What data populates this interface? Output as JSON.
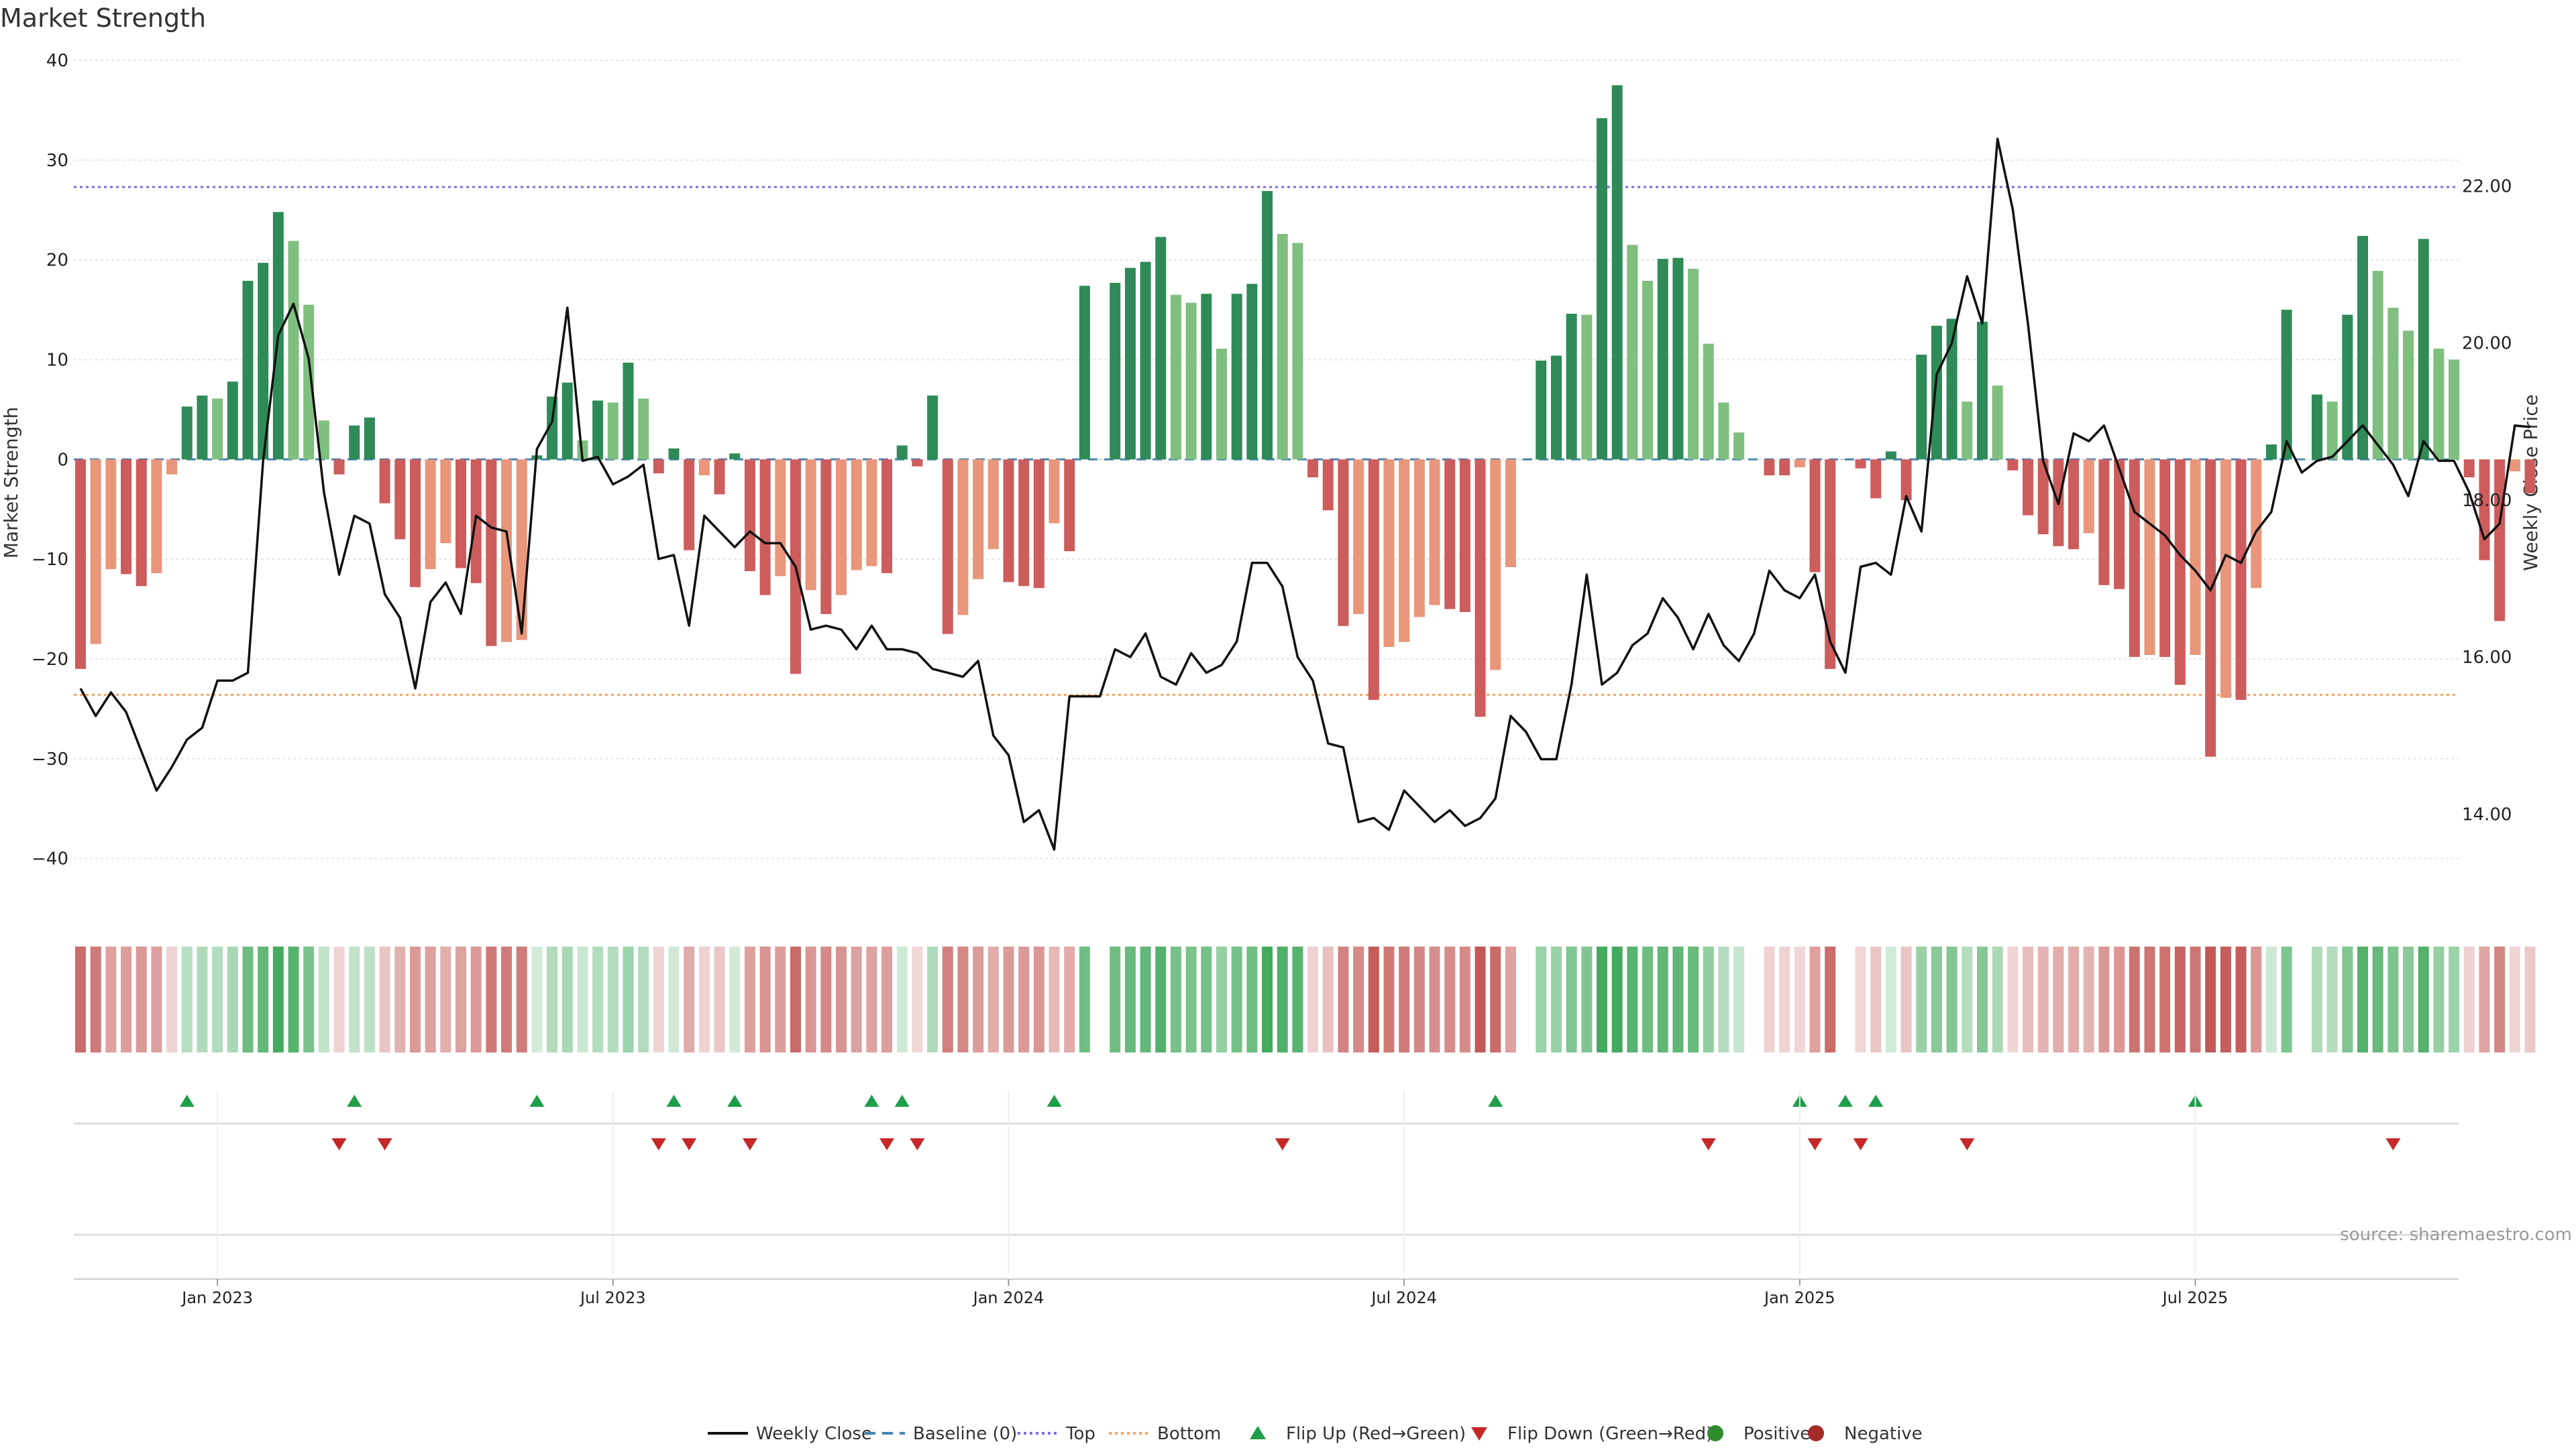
{
  "chart_data": {
    "type": "bar",
    "title": "Market Strength",
    "source": "source: sharemaestro.com",
    "ylabel_left": "Market Strength",
    "ylabel_right": "Weekly Close Price",
    "ylim_left": [
      -45,
      40
    ],
    "ylim_right": [
      12.8,
      23.6
    ],
    "left_ticks": [
      40,
      30,
      20,
      10,
      0,
      -10,
      -20,
      -30,
      -40
    ],
    "right_ticks": [
      22.0,
      20.0,
      18.0,
      16.0,
      14.0
    ],
    "left_tick_labels": [
      "40",
      "30",
      "20",
      "10",
      "0",
      "−10",
      "−20",
      "−30",
      "−40"
    ],
    "right_tick_labels": [
      "22.00",
      "20.00",
      "18.00",
      "16.00",
      "14.00"
    ],
    "x_ticks": [
      {
        "label": "Jan 2023",
        "index": 9
      },
      {
        "label": "Jul 2023",
        "index": 35
      },
      {
        "label": "Jan 2024",
        "index": 61
      },
      {
        "label": "Jul 2024",
        "index": 87
      },
      {
        "label": "Jan 2025",
        "index": 113
      },
      {
        "label": "Jul 2025",
        "index": 139
      }
    ],
    "top_level": 27.3,
    "bottom_level": -23.6,
    "baseline": 0,
    "strength": [
      -21,
      -18.5,
      -11,
      -11.5,
      -12.7,
      -11.4,
      -1.5,
      5.3,
      6.4,
      6.1,
      7.8,
      17.9,
      19.7,
      24.8,
      21.9,
      15.5,
      3.9,
      -1.5,
      3.4,
      4.2,
      -4.4,
      -8,
      -12.8,
      -11,
      -8.4,
      -10.9,
      -12.4,
      -18.7,
      -18.3,
      -18.1,
      0.4,
      6.3,
      7.7,
      1.9,
      5.9,
      5.7,
      9.7,
      6.1,
      -1.4,
      1.1,
      -9.1,
      -1.6,
      -3.5,
      0.6,
      -11.2,
      -13.6,
      -11.7,
      -21.5,
      -13.1,
      -15.5,
      -13.6,
      -11.1,
      -10.7,
      -11.4,
      1.4,
      -0.7,
      6.4,
      -17.5,
      -15.6,
      -12,
      -9,
      -12.3,
      -12.7,
      -12.9,
      -6.4,
      -9.2,
      17.4,
      0,
      17.7,
      19.2,
      19.8,
      22.3,
      16.5,
      15.7,
      16.6,
      11.1,
      16.6,
      17.6,
      26.9,
      22.6,
      21.7,
      -1.8,
      -5.1,
      -16.7,
      -15.5,
      -24.1,
      -18.8,
      -18.3,
      -15.8,
      -14.6,
      -15,
      -15.3,
      -25.8,
      -21.1,
      -10.8,
      0,
      9.9,
      10.4,
      14.6,
      14.5,
      34.2,
      37.5,
      21.5,
      17.9,
      20.1,
      20.2,
      19.1,
      11.6,
      5.7,
      2.7,
      0,
      -1.6,
      -1.6,
      -0.8,
      -11.3,
      -21,
      0,
      -0.9,
      -3.9,
      0.8,
      -4.1,
      10.5,
      13.4,
      14.1,
      5.8,
      13.8,
      7.4,
      -1.1,
      -5.6,
      -7.5,
      -8.7,
      -9,
      -7.4,
      -12.6,
      -13,
      -19.8,
      -19.6,
      -19.8,
      -22.6,
      -19.6,
      -29.8,
      -23.9,
      -24.1,
      -12.9,
      1.5,
      15,
      0,
      6.5,
      5.8,
      14.5,
      22.4,
      18.9,
      15.2,
      12.9,
      22.1,
      11.1,
      10,
      -1.8,
      -10.1,
      -16.2,
      -1.2,
      -3.4
    ],
    "weekly_close": [
      15.6,
      15.25,
      15.55,
      15.3,
      14.8,
      14.3,
      14.6,
      14.95,
      15.1,
      15.7,
      15.7,
      15.8,
      18.5,
      20.1,
      20.5,
      19.8,
      18.1,
      17.05,
      17.8,
      17.7,
      16.8,
      16.5,
      15.6,
      16.7,
      16.95,
      16.55,
      17.8,
      17.65,
      17.6,
      16.3,
      18.65,
      19.0,
      20.45,
      18.5,
      18.55,
      18.2,
      18.3,
      18.45,
      17.25,
      17.3,
      16.4,
      17.8,
      17.6,
      17.4,
      17.6,
      17.45,
      17.45,
      17.15,
      16.35,
      16.4,
      16.35,
      16.1,
      16.4,
      16.1,
      16.1,
      16.05,
      15.85,
      15.8,
      15.75,
      15.95,
      15.0,
      14.75,
      13.9,
      14.05,
      13.55,
      15.5,
      15.5,
      15.5,
      16.1,
      16.0,
      16.3,
      15.75,
      15.65,
      16.05,
      15.8,
      15.9,
      16.2,
      17.2,
      17.2,
      16.9,
      16.0,
      15.7,
      14.9,
      14.85,
      13.9,
      13.95,
      13.8,
      14.3,
      14.1,
      13.9,
      14.05,
      13.85,
      13.95,
      14.2,
      15.25,
      15.05,
      14.7,
      14.7,
      15.65,
      17.05,
      15.65,
      15.8,
      16.15,
      16.3,
      16.75,
      16.5,
      16.1,
      16.55,
      16.15,
      15.95,
      16.3,
      17.1,
      16.85,
      16.75,
      17.05,
      16.2,
      15.8,
      17.15,
      17.2,
      17.05,
      18.05,
      17.6,
      19.6,
      20.0,
      20.85,
      20.25,
      22.6,
      21.7,
      20.25,
      18.5,
      17.95,
      18.85,
      18.75,
      18.95,
      18.4,
      17.85,
      17.7,
      17.55,
      17.3,
      17.1,
      16.85,
      17.3,
      17.2,
      17.6,
      17.85,
      18.75,
      18.35,
      18.5,
      18.55,
      18.75,
      18.95,
      18.7,
      18.45,
      18.05,
      18.75,
      18.5,
      18.5,
      18.1,
      17.5,
      17.7,
      18.95,
      18.93
    ],
    "heat_strip": "per-week colour bars mirroring strength sign and magnitude",
    "flip_up_indices": [
      7,
      18,
      30,
      39,
      43,
      52,
      54,
      64,
      93,
      113,
      116,
      118,
      139
    ],
    "flip_down_indices": [
      17,
      20,
      38,
      40,
      44,
      53,
      55,
      79,
      107,
      114,
      117,
      124,
      152
    ],
    "legend": [
      {
        "label": "Weekly Close",
        "kind": "line"
      },
      {
        "label": "Baseline (0)",
        "kind": "dash"
      },
      {
        "label": "Top",
        "kind": "dot-purple"
      },
      {
        "label": "Bottom",
        "kind": "dot-orange"
      },
      {
        "label": "Flip Up (Red→Green)",
        "kind": "tri-up"
      },
      {
        "label": "Flip Down (Green→Red)",
        "kind": "tri-down"
      },
      {
        "label": "Positive",
        "kind": "dot-green"
      },
      {
        "label": "Negative",
        "kind": "dot-red"
      }
    ],
    "colors": {
      "pos_strong": "#2e8b57",
      "pos_light": "#7fbf7f",
      "neg_strong": "#cd5c5c",
      "neg_light": "#e9967a",
      "line": "#111111",
      "baseline": "#4682b4",
      "top": "#7b68ee",
      "bottom": "#f4a460",
      "flip_up": "#1e9e4a",
      "flip_down": "#c62828",
      "positive_dot": "#2e8b2e",
      "negative_dot": "#a52a2a"
    }
  }
}
